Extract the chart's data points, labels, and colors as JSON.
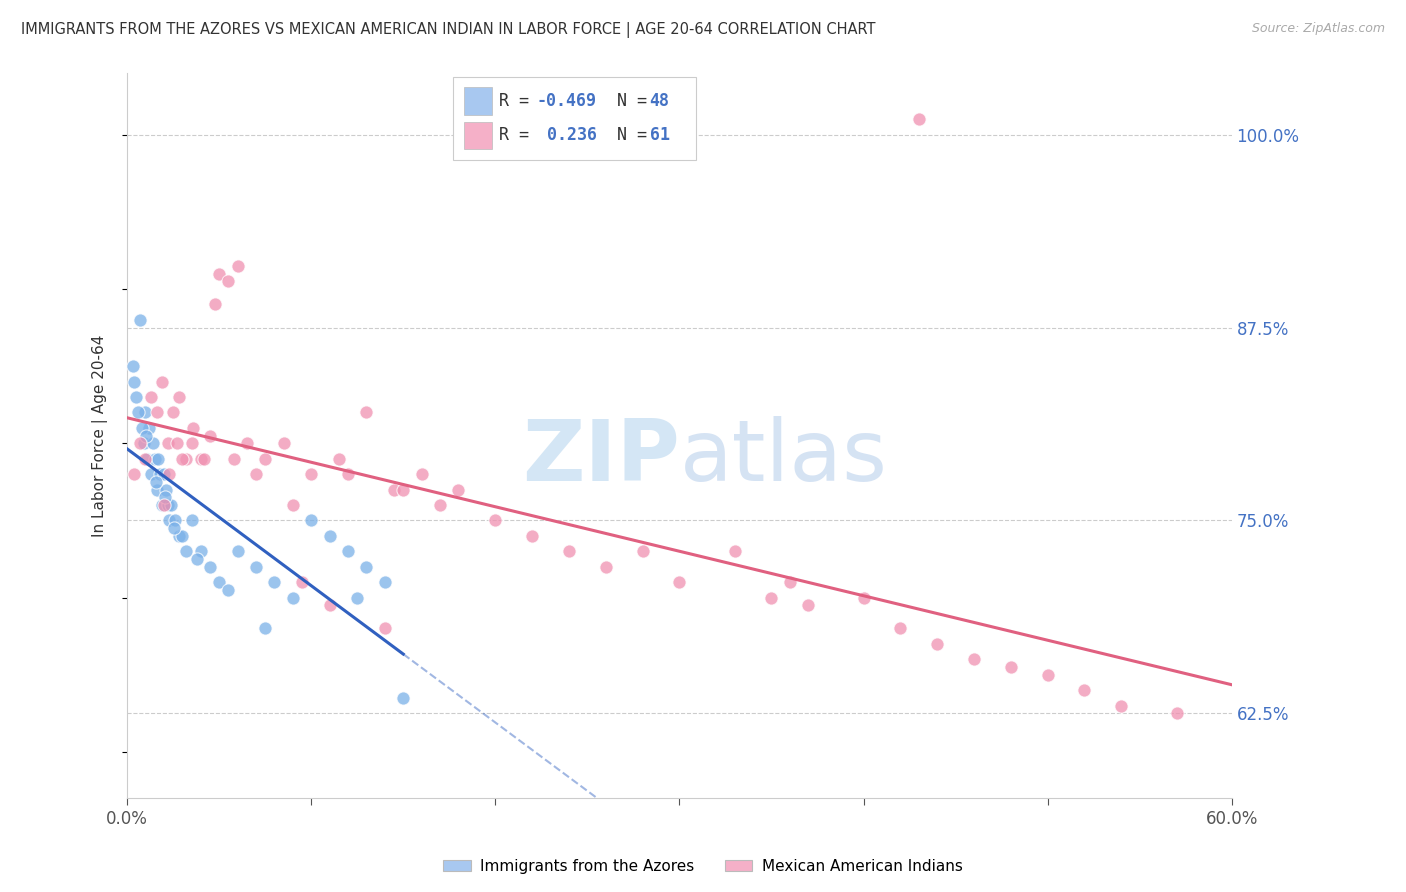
{
  "title": "IMMIGRANTS FROM THE AZORES VS MEXICAN AMERICAN INDIAN IN LABOR FORCE | AGE 20-64 CORRELATION CHART",
  "source": "Source: ZipAtlas.com",
  "ylabel": "In Labor Force | Age 20-64",
  "legend_entry1_color": "#a8c8f0",
  "legend_entry2_color": "#f5b0c8",
  "legend_label1": "Immigrants from the Azores",
  "legend_label2": "Mexican American Indians",
  "blue_color": "#7ab0e8",
  "pink_color": "#f090b0",
  "blue_line_color": "#3060c0",
  "pink_line_color": "#e06080",
  "xlim": [
    0,
    60
  ],
  "ylim": [
    57,
    104
  ],
  "yticks": [
    62.5,
    75.0,
    87.5,
    100.0
  ],
  "blue_x": [
    0.3,
    0.5,
    0.7,
    0.9,
    1.0,
    1.1,
    1.2,
    1.3,
    1.4,
    1.5,
    1.6,
    1.7,
    1.8,
    1.9,
    2.0,
    2.1,
    2.2,
    2.3,
    2.4,
    2.6,
    2.8,
    3.0,
    3.2,
    3.5,
    4.0,
    4.5,
    5.0,
    6.0,
    7.0,
    8.0,
    9.0,
    10.0,
    11.0,
    12.0,
    13.0,
    14.0,
    15.0,
    0.4,
    0.6,
    0.8,
    1.05,
    1.55,
    2.05,
    2.55,
    3.8,
    5.5,
    7.5,
    12.5
  ],
  "blue_y": [
    85.0,
    83.0,
    88.0,
    80.0,
    82.0,
    79.0,
    81.0,
    78.0,
    80.0,
    79.0,
    77.0,
    79.0,
    78.0,
    76.0,
    78.0,
    77.0,
    76.0,
    75.0,
    76.0,
    75.0,
    74.0,
    74.0,
    73.0,
    75.0,
    73.0,
    72.0,
    71.0,
    73.0,
    72.0,
    71.0,
    70.0,
    75.0,
    74.0,
    73.0,
    72.0,
    71.0,
    63.5,
    84.0,
    82.0,
    81.0,
    80.5,
    77.5,
    76.5,
    74.5,
    72.5,
    70.5,
    68.0,
    70.0
  ],
  "pink_x": [
    0.4,
    0.7,
    1.0,
    1.3,
    1.6,
    1.9,
    2.2,
    2.5,
    2.8,
    3.2,
    3.6,
    4.0,
    4.5,
    5.0,
    5.5,
    6.5,
    7.5,
    8.5,
    10.0,
    11.5,
    13.0,
    14.5,
    16.0,
    18.0,
    2.0,
    2.3,
    2.7,
    3.0,
    3.5,
    4.2,
    5.8,
    7.0,
    9.0,
    12.0,
    15.0,
    17.0,
    20.0,
    22.0,
    24.0,
    26.0,
    28.0,
    30.0,
    33.0,
    35.0,
    37.0,
    40.0,
    42.0,
    44.0,
    46.0,
    48.0,
    50.0,
    52.0,
    54.0,
    57.0,
    6.0,
    4.8,
    9.5,
    11.0,
    14.0,
    36.0,
    43.0
  ],
  "pink_y": [
    78.0,
    80.0,
    79.0,
    83.0,
    82.0,
    84.0,
    80.0,
    82.0,
    83.0,
    79.0,
    81.0,
    79.0,
    80.5,
    91.0,
    90.5,
    80.0,
    79.0,
    80.0,
    78.0,
    79.0,
    82.0,
    77.0,
    78.0,
    77.0,
    76.0,
    78.0,
    80.0,
    79.0,
    80.0,
    79.0,
    79.0,
    78.0,
    76.0,
    78.0,
    77.0,
    76.0,
    75.0,
    74.0,
    73.0,
    72.0,
    73.0,
    71.0,
    73.0,
    70.0,
    69.5,
    70.0,
    68.0,
    67.0,
    66.0,
    65.5,
    65.0,
    64.0,
    63.0,
    62.5,
    91.5,
    89.0,
    71.0,
    69.5,
    68.0,
    71.0,
    101.0
  ],
  "blue_solid_xmax": 15.0,
  "blue_dashed_xmax": 55.0,
  "pink_line_xmin": 0.0,
  "pink_line_xmax": 60.0,
  "watermark_zip": "ZIP",
  "watermark_atlas": "atlas"
}
